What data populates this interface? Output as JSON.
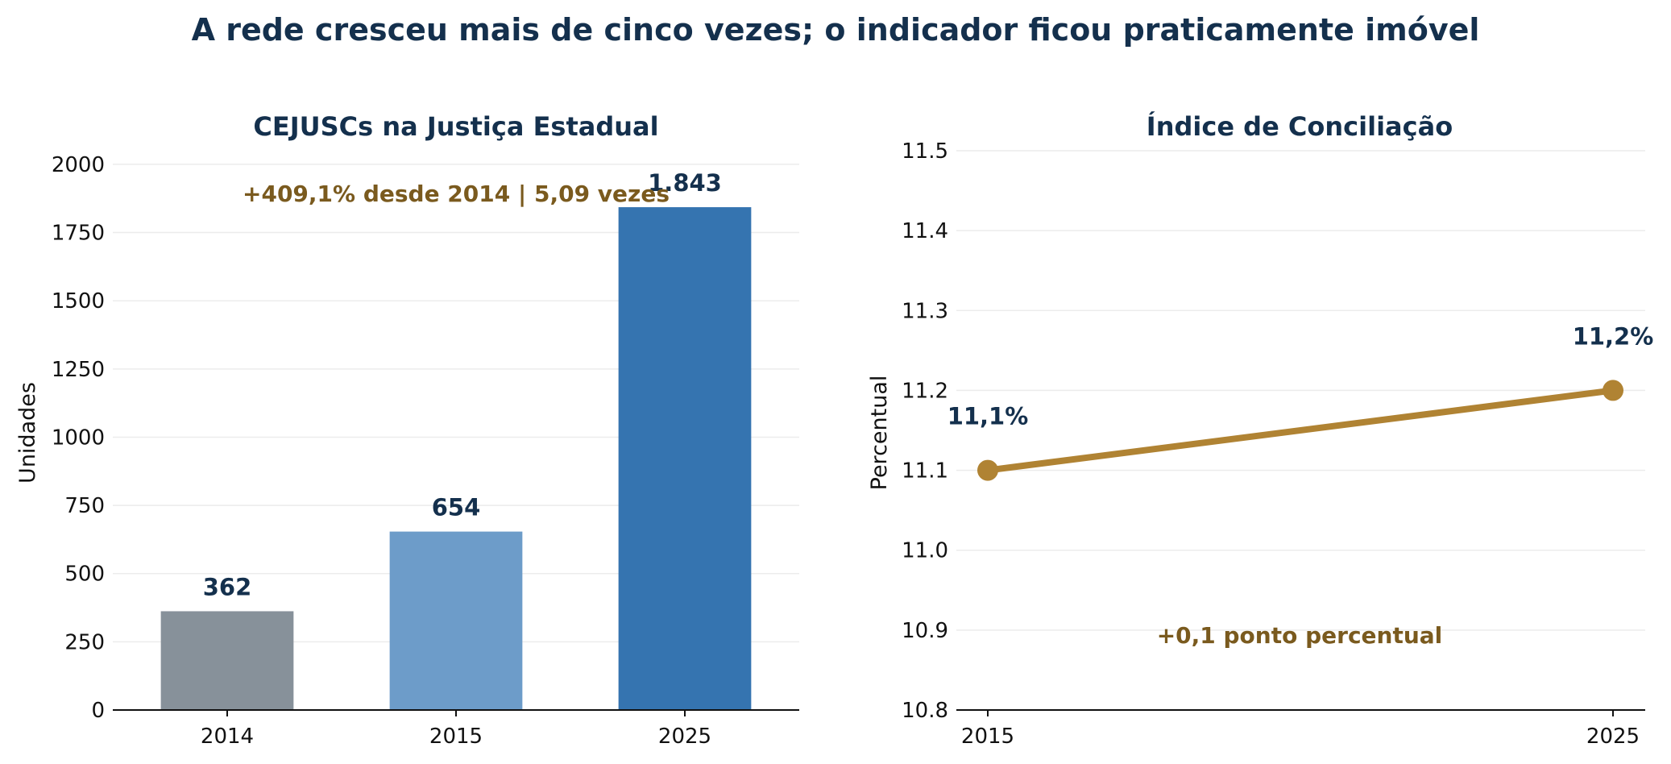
{
  "title": "A rede cresceu mais de cinco vezes; o indicador ficou praticamente imóvel",
  "chart_data": [
    {
      "type": "bar",
      "title": "CEJUSCs na Justiça Estadual",
      "ylabel": "Unidades",
      "categories": [
        "2014",
        "2015",
        "2025"
      ],
      "values": [
        362,
        654,
        1843
      ],
      "value_labels": [
        "362",
        "654",
        "1.843"
      ],
      "colors": [
        "#87919a",
        "#6d9cc9",
        "#3574b0"
      ],
      "ylim": [
        0,
        2050
      ],
      "yticks": [
        0,
        250,
        500,
        750,
        1000,
        1250,
        1500,
        1750,
        2000
      ],
      "ytick_labels": [
        "0",
        "250",
        "500",
        "750",
        "1000",
        "1250",
        "1500",
        "1750",
        "2000"
      ],
      "annotation": "+409,1% desde 2014 | 5,09 vezes",
      "grid": true
    },
    {
      "type": "line",
      "title": "Índice de Conciliação",
      "ylabel": "Percentual",
      "x": [
        "2015",
        "2025"
      ],
      "values": [
        11.1,
        11.2
      ],
      "value_labels": [
        "11,1%",
        "11,2%"
      ],
      "color": "#b08333",
      "ylim": [
        10.8,
        11.5
      ],
      "yticks": [
        10.8,
        10.9,
        11.0,
        11.1,
        11.2,
        11.3,
        11.4,
        11.5
      ],
      "ytick_labels": [
        "10.8",
        "10.9",
        "11.0",
        "11.1",
        "11.2",
        "11.3",
        "11.4",
        "11.5"
      ],
      "annotation": "+0,1 ponto percentual",
      "grid": true
    }
  ]
}
